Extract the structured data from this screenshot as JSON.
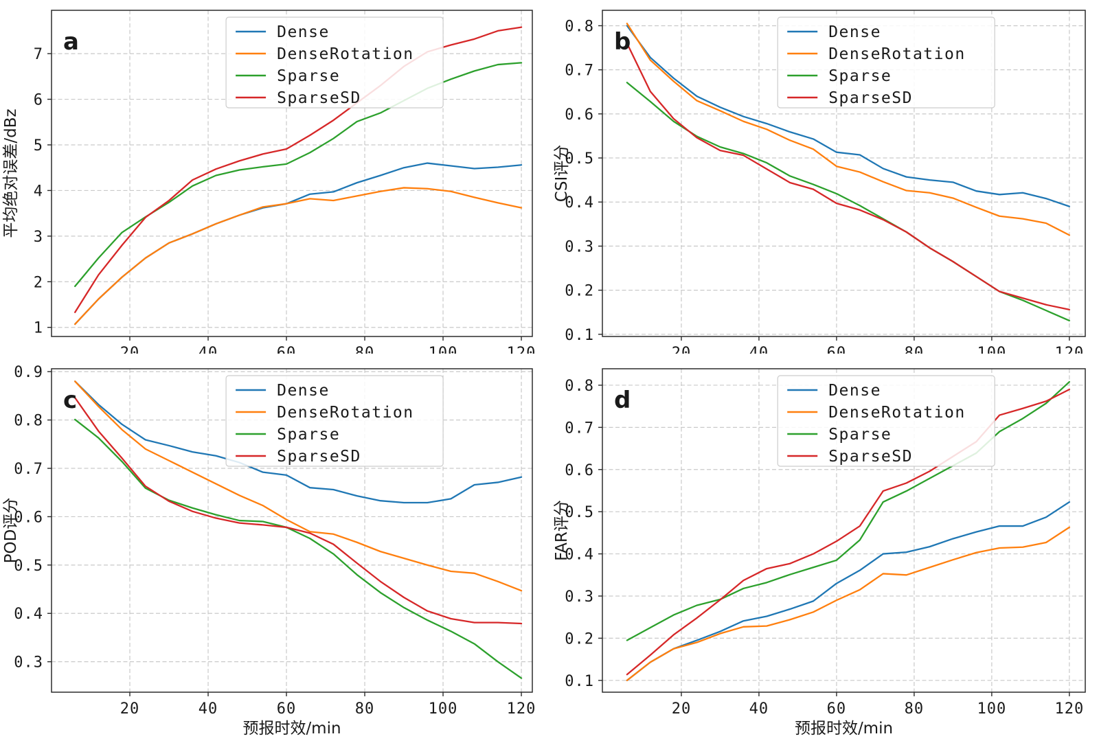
{
  "page": {
    "background": "#ffffff"
  },
  "palette": {
    "dense": "#1f77b4",
    "dense_rotation": "#ff7f0e",
    "sparse": "#2ca02c",
    "sparse_sd": "#d62728",
    "grid": "#c9c9c9",
    "spine": "#2b2b2b",
    "text": "#1a1a1a",
    "legend_border": "#cccccc",
    "legend_bg": "rgba(255,255,255,0.85)"
  },
  "legend_entries": [
    "Dense",
    "DenseRotation",
    "Sparse",
    "SparseSD"
  ],
  "xlabel": "预报时效/min",
  "chart_data": [
    {
      "type": "line",
      "panel_label": "a",
      "ylabel": "平均绝对误差/dBz",
      "xlabel": "",
      "show_xlabel": false,
      "xlim": [
        0,
        122.8
      ],
      "xticks": [
        20,
        40,
        60,
        80,
        100,
        120
      ],
      "ylim": [
        0.8,
        7.95
      ],
      "yticks": [
        1,
        2,
        3,
        4,
        5,
        6,
        7
      ],
      "ytick_decimals": 0,
      "grid": true,
      "legend_position": "upper-center-right",
      "x": [
        6,
        12,
        18,
        24,
        30,
        36,
        42,
        48,
        54,
        60,
        66,
        72,
        78,
        84,
        90,
        96,
        102,
        108,
        114,
        120
      ],
      "series": [
        {
          "name": "Dense",
          "color": "#1f77b4",
          "values": [
            1.07,
            1.62,
            2.1,
            2.52,
            2.85,
            3.05,
            3.27,
            3.46,
            3.62,
            3.71,
            3.92,
            3.97,
            4.17,
            4.33,
            4.5,
            4.6,
            4.54,
            4.48,
            4.51,
            4.56
          ]
        },
        {
          "name": "DenseRotation",
          "color": "#ff7f0e",
          "values": [
            1.07,
            1.62,
            2.1,
            2.52,
            2.85,
            3.05,
            3.27,
            3.46,
            3.64,
            3.71,
            3.82,
            3.78,
            3.88,
            3.98,
            4.06,
            4.04,
            3.98,
            3.85,
            3.73,
            3.62
          ]
        },
        {
          "name": "Sparse",
          "color": "#2ca02c",
          "values": [
            1.9,
            2.52,
            3.08,
            3.42,
            3.74,
            4.1,
            4.33,
            4.45,
            4.52,
            4.58,
            4.83,
            5.14,
            5.51,
            5.7,
            5.97,
            6.24,
            6.44,
            6.62,
            6.76,
            6.8
          ]
        },
        {
          "name": "SparseSD",
          "color": "#d62728",
          "values": [
            1.33,
            2.15,
            2.8,
            3.41,
            3.78,
            4.23,
            4.47,
            4.65,
            4.8,
            4.91,
            5.21,
            5.54,
            5.92,
            6.3,
            6.72,
            7.04,
            7.19,
            7.32,
            7.5,
            7.58
          ]
        }
      ]
    },
    {
      "type": "line",
      "panel_label": "b",
      "ylabel": "CSI评分",
      "xlabel": "",
      "show_xlabel": false,
      "xlim": [
        -0.35,
        124.1
      ],
      "xticks": [
        20,
        40,
        60,
        80,
        100,
        120
      ],
      "ylim": [
        0.095,
        0.835
      ],
      "yticks": [
        0.1,
        0.2,
        0.3,
        0.4,
        0.5,
        0.6,
        0.7,
        0.8
      ],
      "ytick_decimals": 1,
      "grid": true,
      "legend_position": "upper-center-right",
      "x": [
        6,
        12,
        18,
        24,
        30,
        36,
        42,
        48,
        54,
        60,
        66,
        72,
        78,
        84,
        90,
        96,
        102,
        108,
        114,
        120
      ],
      "series": [
        {
          "name": "Dense",
          "color": "#1f77b4",
          "values": [
            0.8,
            0.728,
            0.681,
            0.64,
            0.615,
            0.594,
            0.578,
            0.559,
            0.543,
            0.513,
            0.507,
            0.476,
            0.457,
            0.45,
            0.445,
            0.425,
            0.417,
            0.421,
            0.408,
            0.39
          ]
        },
        {
          "name": "DenseRotation",
          "color": "#ff7f0e",
          "values": [
            0.805,
            0.722,
            0.674,
            0.63,
            0.607,
            0.583,
            0.565,
            0.54,
            0.52,
            0.481,
            0.468,
            0.446,
            0.426,
            0.421,
            0.409,
            0.388,
            0.368,
            0.362,
            0.352,
            0.325
          ]
        },
        {
          "name": "Sparse",
          "color": "#2ca02c",
          "values": [
            0.671,
            0.628,
            0.583,
            0.549,
            0.525,
            0.51,
            0.489,
            0.459,
            0.44,
            0.419,
            0.392,
            0.362,
            0.332,
            0.296,
            0.265,
            0.231,
            0.197,
            0.177,
            0.154,
            0.131
          ]
        },
        {
          "name": "SparseSD",
          "color": "#d62728",
          "values": [
            0.76,
            0.651,
            0.589,
            0.546,
            0.517,
            0.506,
            0.475,
            0.444,
            0.429,
            0.397,
            0.382,
            0.36,
            0.332,
            0.296,
            0.265,
            0.231,
            0.197,
            0.182,
            0.167,
            0.156
          ]
        }
      ]
    },
    {
      "type": "line",
      "panel_label": "c",
      "ylabel": "POD评分",
      "xlabel": "预报时效/min",
      "show_xlabel": true,
      "xlim": [
        0,
        122.8
      ],
      "xticks": [
        20,
        40,
        60,
        80,
        100,
        120
      ],
      "ylim": [
        0.237,
        0.906
      ],
      "yticks": [
        0.3,
        0.4,
        0.5,
        0.6,
        0.7,
        0.8,
        0.9
      ],
      "ytick_decimals": 1,
      "grid": true,
      "legend_position": "upper-center-right",
      "x": [
        6,
        12,
        18,
        24,
        30,
        36,
        42,
        48,
        54,
        60,
        66,
        72,
        78,
        84,
        90,
        96,
        102,
        108,
        114,
        120
      ],
      "series": [
        {
          "name": "Dense",
          "color": "#1f77b4",
          "values": [
            0.88,
            0.832,
            0.791,
            0.759,
            0.747,
            0.734,
            0.726,
            0.712,
            0.692,
            0.686,
            0.66,
            0.656,
            0.643,
            0.633,
            0.629,
            0.629,
            0.637,
            0.666,
            0.671,
            0.682
          ]
        },
        {
          "name": "DenseRotation",
          "color": "#ff7f0e",
          "values": [
            0.88,
            0.828,
            0.78,
            0.74,
            0.716,
            0.692,
            0.668,
            0.644,
            0.623,
            0.594,
            0.569,
            0.564,
            0.547,
            0.528,
            0.514,
            0.5,
            0.487,
            0.483,
            0.466,
            0.447
          ]
        },
        {
          "name": "Sparse",
          "color": "#2ca02c",
          "values": [
            0.801,
            0.763,
            0.714,
            0.659,
            0.634,
            0.618,
            0.604,
            0.592,
            0.59,
            0.578,
            0.555,
            0.523,
            0.48,
            0.443,
            0.412,
            0.386,
            0.363,
            0.337,
            0.3,
            0.266
          ]
        },
        {
          "name": "SparseSD",
          "color": "#d62728",
          "values": [
            0.846,
            0.777,
            0.721,
            0.663,
            0.632,
            0.611,
            0.597,
            0.587,
            0.583,
            0.578,
            0.566,
            0.543,
            0.504,
            0.466,
            0.433,
            0.405,
            0.389,
            0.381,
            0.381,
            0.379
          ]
        }
      ]
    },
    {
      "type": "line",
      "panel_label": "d",
      "ylabel": "FAR评分",
      "xlabel": "预报时效/min",
      "show_xlabel": true,
      "xlim": [
        -0.35,
        124.1
      ],
      "xticks": [
        20,
        40,
        60,
        80,
        100,
        120
      ],
      "ylim": [
        0.072,
        0.839
      ],
      "yticks": [
        0.1,
        0.2,
        0.3,
        0.4,
        0.5,
        0.6,
        0.7,
        0.8
      ],
      "ytick_decimals": 1,
      "grid": true,
      "legend_position": "upper-center-right",
      "x": [
        6,
        12,
        18,
        24,
        30,
        36,
        42,
        48,
        54,
        60,
        66,
        72,
        78,
        84,
        90,
        96,
        102,
        108,
        114,
        120
      ],
      "series": [
        {
          "name": "Dense",
          "color": "#1f77b4",
          "values": [
            0.1,
            0.143,
            0.175,
            0.195,
            0.216,
            0.241,
            0.252,
            0.269,
            0.288,
            0.33,
            0.361,
            0.4,
            0.404,
            0.417,
            0.436,
            0.452,
            0.466,
            0.466,
            0.487,
            0.523
          ]
        },
        {
          "name": "DenseRotation",
          "color": "#ff7f0e",
          "values": [
            0.1,
            0.143,
            0.175,
            0.19,
            0.211,
            0.227,
            0.229,
            0.244,
            0.262,
            0.29,
            0.315,
            0.353,
            0.35,
            0.368,
            0.386,
            0.403,
            0.414,
            0.416,
            0.427,
            0.463
          ]
        },
        {
          "name": "Sparse",
          "color": "#2ca02c",
          "values": [
            0.195,
            0.225,
            0.255,
            0.278,
            0.292,
            0.318,
            0.332,
            0.351,
            0.368,
            0.385,
            0.433,
            0.523,
            0.549,
            0.579,
            0.609,
            0.639,
            0.69,
            0.721,
            0.757,
            0.808
          ]
        },
        {
          "name": "SparseSD",
          "color": "#d62728",
          "values": [
            0.114,
            0.16,
            0.208,
            0.248,
            0.291,
            0.337,
            0.365,
            0.377,
            0.4,
            0.43,
            0.466,
            0.549,
            0.568,
            0.596,
            0.631,
            0.666,
            0.729,
            0.745,
            0.762,
            0.79
          ]
        }
      ]
    }
  ]
}
